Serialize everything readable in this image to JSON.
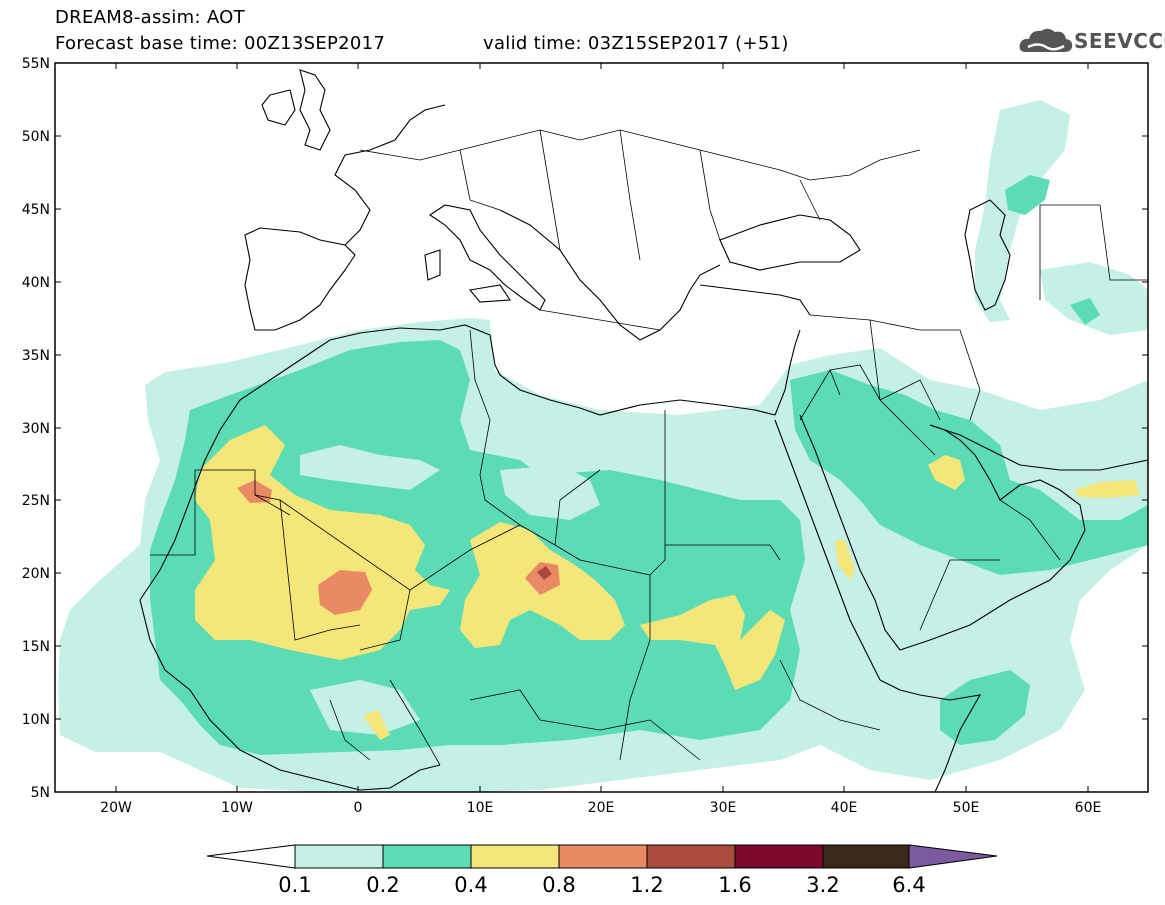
{
  "header": {
    "line1": "DREAM8-assim: AOT",
    "line2": "Forecast base time: 00Z13SEP2017",
    "line3": "valid time: 03Z15SEP2017 (+51)"
  },
  "logo": {
    "text": "SEEVCCC",
    "icon": "cloud-icon"
  },
  "map": {
    "lon_range": [
      -25,
      65
    ],
    "lat_range": [
      5,
      55
    ],
    "lat_ticks": [
      "55N",
      "50N",
      "45N",
      "40N",
      "35N",
      "30N",
      "25N",
      "20N",
      "15N",
      "10N",
      "5N"
    ],
    "lon_ticks": [
      "20W",
      "10W",
      "0",
      "10E",
      "20E",
      "30E",
      "40E",
      "50E",
      "60E"
    ]
  },
  "colorbar": {
    "labels": [
      "0.1",
      "0.2",
      "0.4",
      "0.8",
      "1.2",
      "1.6",
      "3.2",
      "6.4"
    ],
    "colors": {
      "under": "#ffffff",
      "c1": "#c4f0e6",
      "c2": "#5cdcb4",
      "c3": "#f5e67a",
      "c4": "#ea8a64",
      "c5": "#aa4a3c",
      "c6": "#7c0a2c",
      "c7": "#3c2818",
      "over": "#7c5aa0"
    }
  }
}
